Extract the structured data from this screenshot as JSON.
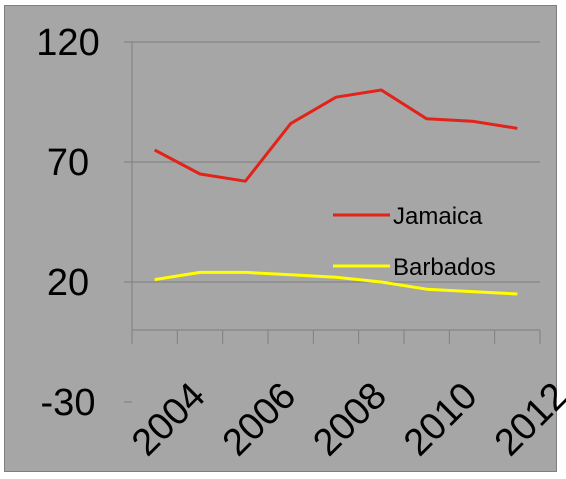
{
  "chart_data": {
    "type": "line",
    "x": [
      2004.5,
      2005.5,
      2006.5,
      2007.5,
      2008.5,
      2009.5,
      2010.5,
      2011.5,
      2012.5
    ],
    "series": [
      {
        "name": "Jamaica",
        "color": "#e2231a",
        "values": [
          75,
          65,
          62,
          86,
          97,
          100,
          88,
          87,
          84
        ]
      },
      {
        "name": "Barbados",
        "color": "#ffff00",
        "values": [
          21,
          24,
          24,
          23,
          22,
          20,
          17,
          16,
          15
        ]
      }
    ],
    "xticks": [
      "2004",
      "2006",
      "2008",
      "2010",
      "2012"
    ],
    "yticks": [
      "-30",
      "20",
      "70",
      "120"
    ],
    "xlim": [
      2004,
      2013
    ],
    "ylim": [
      -30,
      120
    ],
    "grid": "horizontal",
    "legend": "center-right"
  }
}
